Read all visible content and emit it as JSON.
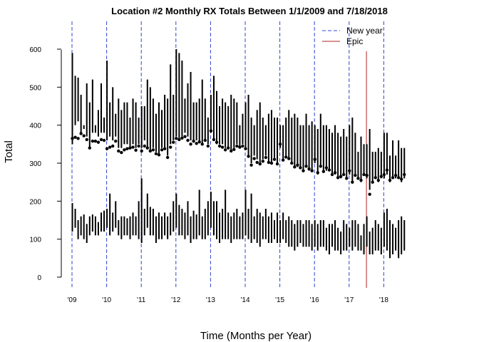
{
  "chart_data": {
    "type": "scatter",
    "title": "Location #2 Monthly RX Totals Between 1/1/2009 and 7/18/2018",
    "xlabel": "Time (Months per Year)",
    "ylabel": "Total",
    "ylim": [
      -5,
      670
    ],
    "xlim": [
      "2009-01",
      "2018-07"
    ],
    "y_ticks": [
      "0",
      "100",
      "200",
      "300",
      "400",
      "500",
      "600"
    ],
    "x_ticks": [
      "'09",
      "'10",
      "'11",
      "'12",
      "'13",
      "'14",
      "'15",
      "'16",
      "'17",
      "'18"
    ],
    "x_tick_values": [
      2009,
      2010,
      2011,
      2012,
      2013,
      2014,
      2015,
      2016,
      2017,
      2018
    ],
    "legend": {
      "position": "top-right",
      "entries": [
        {
          "label": "New year",
          "color": "#3344cc",
          "style": "dashed"
        },
        {
          "label": "Epic",
          "color": "#b22222",
          "style": "solid"
        }
      ]
    },
    "new_year_lines": [
      "2009-01",
      "2010-01",
      "2011-01",
      "2012-01",
      "2013-01",
      "2014-01",
      "2015-01",
      "2016-01",
      "2017-01",
      "2018-01"
    ],
    "epic_line": "2017-07",
    "colors": {
      "points": "#000000",
      "ranges": "#000000",
      "new_year": "#3344cc",
      "epic": "#b22222"
    },
    "monthly_means": {
      "start": "2009-01",
      "values": [
        365,
        368,
        365,
        378,
        372,
        362,
        340,
        358,
        358,
        355,
        362,
        360,
        338,
        342,
        345,
        358,
        332,
        328,
        335,
        338,
        340,
        342,
        334,
        345,
        332,
        345,
        340,
        332,
        335,
        325,
        322,
        335,
        338,
        315,
        342,
        355,
        365,
        362,
        366,
        370,
        360,
        350,
        358,
        352,
        356,
        350,
        360,
        345,
        385,
        362,
        355,
        345,
        342,
        335,
        340,
        332,
        336,
        345,
        342,
        345,
        338,
        318,
        295,
        312,
        302,
        298,
        305,
        315,
        302,
        300,
        310,
        298,
        350,
        308,
        316,
        312,
        300,
        290,
        295,
        288,
        280,
        292,
        285,
        280,
        310,
        275,
        292,
        278,
        288,
        282,
        270,
        275,
        262,
        265,
        270,
        260,
        280,
        250,
        268,
        260,
        255,
        270,
        268,
        218,
        250,
        262,
        255,
        265,
        270,
        282,
        255,
        262,
        268,
        262,
        258,
        270
      ]
    },
    "daily_spread": {
      "upper_max": [
        590,
        530,
        525,
        480,
        400,
        510,
        460,
        520,
        400,
        440,
        510,
        420,
        570,
        460,
        500,
        430,
        470,
        440,
        460,
        460,
        420,
        470,
        460,
        420,
        450,
        450,
        520,
        500,
        470,
        430,
        460,
        440,
        480,
        470,
        560,
        480,
        600,
        590,
        570,
        470,
        510,
        540,
        460,
        460,
        470,
        520,
        470,
        420,
        480,
        530,
        490,
        450,
        470,
        460,
        450,
        480,
        470,
        460,
        400,
        430,
        460,
        480,
        420,
        400,
        440,
        460,
        420,
        400,
        430,
        440,
        420,
        420,
        400,
        400,
        420,
        440,
        420,
        430,
        420,
        400,
        400,
        430,
        400,
        410,
        400,
        390,
        430,
        400,
        400,
        390,
        380,
        400,
        380,
        370,
        390,
        370,
        400,
        420,
        380,
        330,
        370,
        350,
        350,
        390,
        330,
        330,
        340,
        330,
        380,
        380,
        320,
        360,
        320,
        360,
        340,
        340
      ],
      "upper_min": [
        350,
        400,
        410,
        380,
        390,
        370,
        340,
        380,
        380,
        370,
        380,
        380,
        360,
        370,
        360,
        370,
        340,
        340,
        350,
        350,
        340,
        350,
        340,
        350,
        340,
        360,
        340,
        330,
        340,
        330,
        320,
        340,
        340,
        320,
        350,
        360,
        370,
        360,
        370,
        380,
        370,
        360,
        360,
        360,
        360,
        350,
        360,
        350,
        380,
        360,
        350,
        350,
        350,
        340,
        340,
        330,
        340,
        350,
        340,
        350,
        340,
        320,
        300,
        320,
        310,
        300,
        310,
        320,
        300,
        300,
        310,
        300,
        340,
        310,
        320,
        310,
        300,
        290,
        290,
        290,
        280,
        290,
        280,
        280,
        300,
        270,
        290,
        280,
        280,
        280,
        270,
        270,
        260,
        260,
        270,
        260,
        270,
        250,
        270,
        260,
        250,
        270,
        260,
        230,
        250,
        260,
        250,
        260,
        260,
        270,
        250,
        260,
        260,
        260,
        250,
        260
      ],
      "lower_max": [
        195,
        180,
        150,
        160,
        165,
        140,
        160,
        165,
        160,
        145,
        170,
        175,
        180,
        220,
        170,
        200,
        150,
        160,
        160,
        155,
        160,
        170,
        160,
        200,
        260,
        180,
        220,
        185,
        180,
        160,
        170,
        160,
        170,
        160,
        170,
        200,
        220,
        190,
        180,
        170,
        200,
        160,
        175,
        165,
        230,
        160,
        180,
        200,
        225,
        200,
        200,
        170,
        180,
        230,
        170,
        160,
        170,
        180,
        160,
        170,
        230,
        180,
        220,
        160,
        180,
        170,
        160,
        180,
        160,
        170,
        150,
        170,
        150,
        170,
        150,
        160,
        150,
        140,
        150,
        150,
        140,
        150,
        150,
        140,
        150,
        140,
        150,
        150,
        130,
        140,
        140,
        150,
        130,
        120,
        150,
        140,
        130,
        150,
        150,
        140,
        110,
        140,
        160,
        120,
        130,
        150,
        140,
        130,
        170,
        180,
        150,
        140,
        130,
        150,
        160,
        150
      ],
      "lower_min": [
        120,
        130,
        100,
        110,
        100,
        90,
        110,
        120,
        110,
        110,
        120,
        120,
        130,
        110,
        120,
        130,
        110,
        100,
        110,
        110,
        100,
        110,
        110,
        100,
        90,
        110,
        130,
        110,
        110,
        90,
        100,
        100,
        110,
        100,
        110,
        120,
        130,
        110,
        110,
        100,
        110,
        90,
        100,
        100,
        110,
        100,
        100,
        110,
        130,
        110,
        100,
        90,
        100,
        100,
        100,
        90,
        100,
        100,
        100,
        100,
        110,
        100,
        90,
        100,
        90,
        80,
        100,
        100,
        90,
        90,
        100,
        90,
        90,
        100,
        90,
        80,
        80,
        70,
        80,
        90,
        80,
        80,
        80,
        70,
        80,
        70,
        80,
        80,
        70,
        60,
        80,
        70,
        70,
        60,
        70,
        70,
        80,
        70,
        80,
        70,
        70,
        60,
        80,
        60,
        60,
        70,
        70,
        60,
        80,
        70,
        50,
        60,
        70,
        50,
        60,
        70
      ]
    }
  }
}
